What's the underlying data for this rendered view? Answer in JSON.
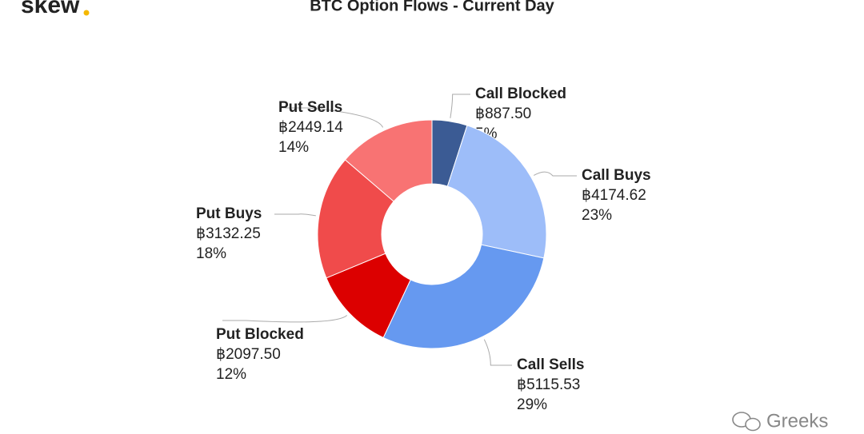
{
  "logo": "skew",
  "watermark": "Greeks",
  "chart_data": {
    "type": "pie",
    "donut": true,
    "title": "BTC Option Flows - Current Day",
    "categories": [
      "Call Blocked",
      "Call Buys",
      "Call Sells",
      "Put Blocked",
      "Put Buys",
      "Put Sells"
    ],
    "values": [
      887.5,
      4174.62,
      5115.53,
      2097.5,
      3132.25,
      2449.14
    ],
    "value_labels": [
      "฿887.50",
      "฿4174.62",
      "฿5115.53",
      "฿2097.50",
      "฿3132.25",
      "฿2449.14"
    ],
    "percent_labels": [
      "5%",
      "23%",
      "29%",
      "12%",
      "18%",
      "14%"
    ],
    "colors": [
      "#3b5b94",
      "#9dbdf9",
      "#6699f0",
      "#dc0000",
      "#f04b4b",
      "#f87373"
    ]
  }
}
